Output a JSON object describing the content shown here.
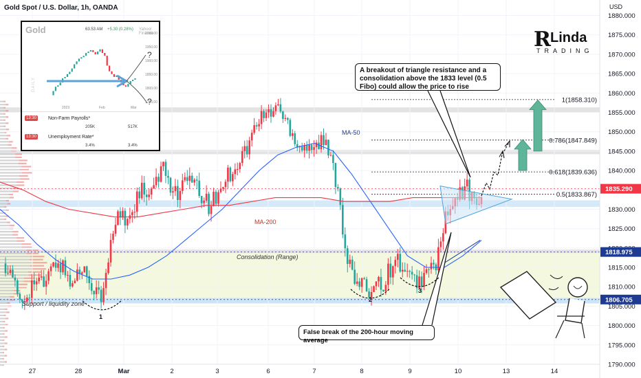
{
  "header": {
    "title": "Gold Spot / U.S. Dollar, 1h, OANDA",
    "currency": "USD"
  },
  "price_axis": {
    "ticks": [
      "1880.000",
      "1875.000",
      "1870.000",
      "1865.000",
      "1860.000",
      "1855.000",
      "1850.000",
      "1845.000",
      "1840.000",
      "1835.000",
      "1830.000",
      "1825.000",
      "1820.000",
      "1815.000",
      "1810.000",
      "1805.000",
      "1800.000",
      "1795.000",
      "1790.000"
    ],
    "badges": [
      {
        "label": "1835.290",
        "value": 1835.29,
        "color": "#f23645"
      },
      {
        "label": "1818.975",
        "value": 1818.975,
        "color": "#1f3a93"
      },
      {
        "label": "1806.705",
        "value": 1806.705,
        "color": "#1f3a93"
      }
    ]
  },
  "time_axis": {
    "labels": [
      "27",
      "28",
      "Mar",
      "2",
      "3",
      "6",
      "7",
      "8",
      "9",
      "10",
      "13",
      "14"
    ]
  },
  "fib_levels": [
    {
      "label": "1(1858.310)",
      "value": 1858.31
    },
    {
      "label": "0.786(1847.849)",
      "value": 1847.849
    },
    {
      "label": "0.618(1839.636)",
      "value": 1839.636
    },
    {
      "label": "0.5(1833.867)",
      "value": 1833.867
    }
  ],
  "zones": [
    {
      "label": "Consolidation (Range)",
      "from": 1806.705,
      "to": 1818.975,
      "color": "#f3f8de"
    },
    {
      "label": "Support / liquidity zone",
      "from": 1805.7,
      "to": 1807.1,
      "color": "#cde4f6"
    }
  ],
  "annotations": {
    "ma50": "MA-50",
    "ma200": "MA-200",
    "range": "Consolidation (Range)",
    "support": "Support / liquidity zone",
    "bottoms": [
      "1",
      "2",
      "3"
    ],
    "breakout_note": "A breakout of triangle resistance and a consolidation above the 1833 level (0.5 Fibo) could allow the price to rise",
    "false_break_note": "False break of the 200-hour moving average"
  },
  "inset": {
    "title": "Gold",
    "price": "63.53 AM",
    "change": "+5.30 (0.28%)",
    "watermark": "Yahoo! Finance",
    "side_label": "DAILY",
    "x_labels": [
      "2023",
      "Feb",
      "Mar"
    ],
    "y_ticks": [
      "2000.00",
      "1950.00",
      "1900.00",
      "1850.00",
      "1800.00",
      "1750.00"
    ],
    "events": [
      {
        "time": "13:30",
        "name": "Non-Farm Payrolls*",
        "actual": "205K",
        "forecast": "517K"
      },
      {
        "time": "13:30",
        "name": "Unemployment Rate*",
        "actual": "3.4%",
        "forecast": "3.4%"
      }
    ],
    "question_mark": "?"
  },
  "logo": {
    "letter": "R",
    "word": "Linda",
    "tagline": "TRADING"
  },
  "colors": {
    "bull": "#f23645",
    "bear": "#26a69a",
    "ma50": "#2962ff",
    "ma200": "#f23645",
    "arrow": "#5fb59a",
    "fib": "#222222"
  },
  "chart_data": {
    "type": "candlestick",
    "symbol": "Gold Spot / U.S. Dollar",
    "timeframe": "1h",
    "ylim": [
      1790,
      1884
    ],
    "y_ticks": [
      1880,
      1875,
      1870,
      1865,
      1860,
      1855,
      1850,
      1845,
      1840,
      1835,
      1830,
      1825,
      1820,
      1815,
      1810,
      1805,
      1800,
      1795,
      1790
    ],
    "x_labels": [
      "27",
      "28",
      "Mar",
      "2",
      "3",
      "6",
      "7",
      "8",
      "9",
      "10",
      "13",
      "14"
    ],
    "last_price": 1835.29,
    "close_path": [
      1816,
      1811,
      1806,
      1809,
      1812,
      1810,
      1814,
      1817,
      1813,
      1811,
      1815,
      1813,
      1809,
      1808,
      1822,
      1829,
      1827,
      1831,
      1835,
      1832,
      1838,
      1840,
      1836,
      1834,
      1838,
      1836,
      1833,
      1831,
      1833,
      1838,
      1840,
      1843,
      1846,
      1851,
      1854,
      1855,
      1857,
      1853,
      1850,
      1846,
      1847,
      1846,
      1848,
      1843,
      1836,
      1820,
      1812,
      1810,
      1809,
      1812,
      1811,
      1815,
      1817,
      1813,
      1811,
      1812,
      1814,
      1816,
      1826,
      1830,
      1833,
      1836,
      1831,
      1835
    ],
    "series": [
      {
        "name": "MA-50",
        "values": [
          1830,
          1826,
          1821,
          1817,
          1814,
          1812,
          1812,
          1813,
          1815,
          1818,
          1822,
          1826,
          1830,
          1835,
          1840,
          1844,
          1846,
          1847,
          1845,
          1839,
          1832,
          1825,
          1818,
          1815,
          1815,
          1818,
          1822
        ]
      },
      {
        "name": "MA-200",
        "values": [
          1837,
          1835,
          1832,
          1830,
          1829,
          1828,
          1828,
          1829,
          1830,
          1831,
          1831,
          1832,
          1833,
          1833,
          1833,
          1832,
          1832,
          1832,
          1833,
          1833,
          1833,
          1833
        ]
      }
    ]
  }
}
